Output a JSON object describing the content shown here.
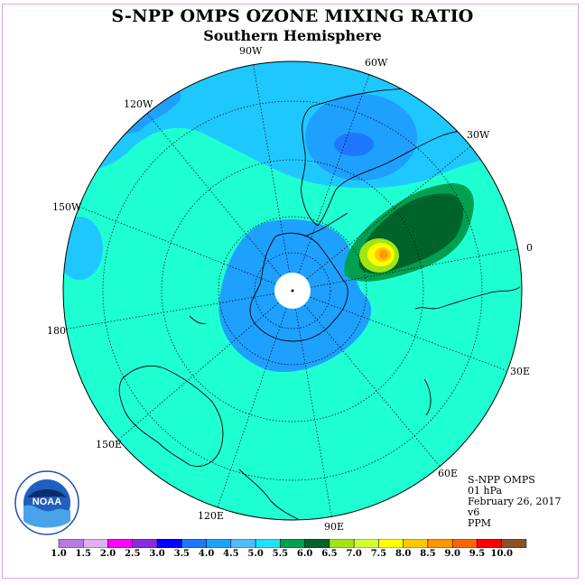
{
  "title": "S-NPP OMPS OZONE MIXING RATIO",
  "subtitle": "Southern Hemisphere",
  "longitude_labels": [
    "90W",
    "60W",
    "30W",
    "0",
    "30E",
    "60E",
    "90E",
    "120E",
    "150E",
    "180",
    "150W",
    "120W"
  ],
  "info": {
    "instrument": "S-NPP OMPS",
    "level": "01 hPa",
    "date": "February 26, 2017",
    "version": "v6",
    "units": "PPM"
  },
  "logo_text": "NOAA",
  "colorbar": {
    "labels": [
      "1.0",
      "1.5",
      "2.0",
      "2.5",
      "3.0",
      "3.5",
      "4.0",
      "4.5",
      "5.0",
      "5.5",
      "6.0",
      "6.5",
      "7.0",
      "7.5",
      "8.0",
      "8.5",
      "9.0",
      "9.5",
      "10.0"
    ],
    "colors": [
      "#b77be0",
      "#dfb0f0",
      "#ff00ff",
      "#8a2be2",
      "#0000ff",
      "#1e78ff",
      "#1ea0ff",
      "#50bcff",
      "#1ee0ff",
      "#00a050",
      "#006428",
      "#a0e614",
      "#d2ff32",
      "#ffff00",
      "#ffc800",
      "#ff9600",
      "#ff6400",
      "#ff0000",
      "#8c5028"
    ]
  },
  "map_colors": {
    "background": "#1effd2",
    "mid_blue": "#1ec8ff",
    "blue": "#1ea0ff",
    "dark_blue": "#1e78ff",
    "green": "#00a050",
    "dark_green": "#006428",
    "lime": "#a0e614",
    "yellow": "#ffff00",
    "orange": "#ff9600"
  }
}
